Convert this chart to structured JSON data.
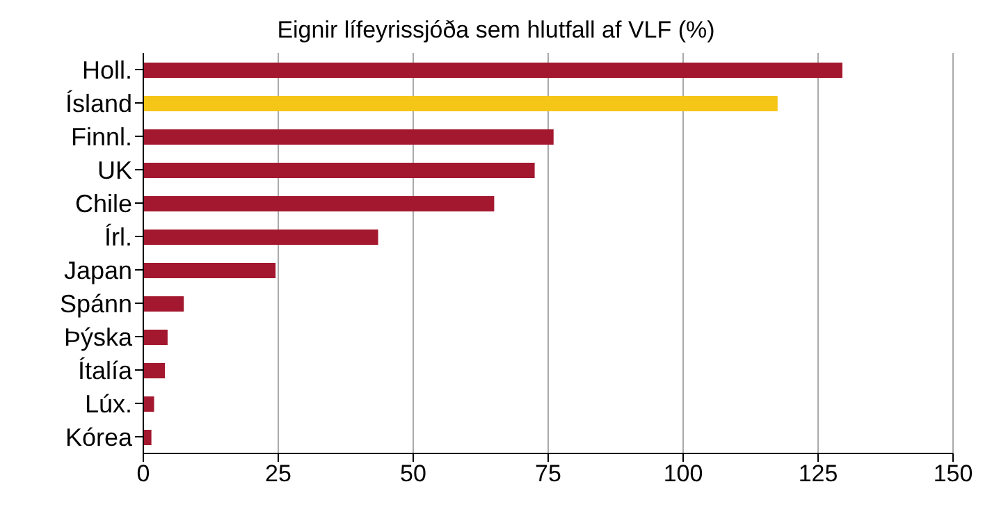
{
  "chart_data": {
    "type": "bar",
    "orientation": "horizontal",
    "title": "Eignir lífeyrissjóða sem hlutfall af VLF (%)",
    "categories": [
      "Holl.",
      "Ísland",
      "Finnl.",
      "UK",
      "Chile",
      "Írl.",
      "Japan",
      "Spánn",
      "Þýska",
      "Ítalía",
      "Lúx.",
      "Kórea"
    ],
    "values": [
      129.5,
      117.5,
      76,
      72.5,
      65,
      43.5,
      24.5,
      7.5,
      4.5,
      4,
      2,
      1.5
    ],
    "colors": [
      "#a3182f",
      "#f5c518",
      "#a3182f",
      "#a3182f",
      "#a3182f",
      "#a3182f",
      "#a3182f",
      "#a3182f",
      "#a3182f",
      "#a3182f",
      "#a3182f",
      "#a3182f"
    ],
    "xlim": [
      0,
      150
    ],
    "xticks": [
      0,
      25,
      50,
      75,
      100,
      125,
      150
    ],
    "grid": "x"
  }
}
